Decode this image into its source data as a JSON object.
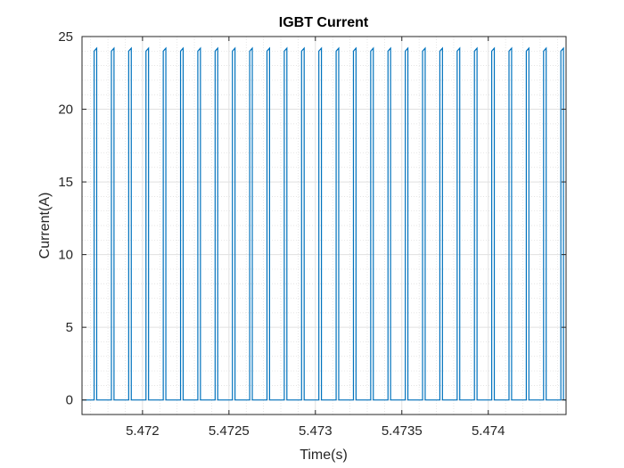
{
  "chart_data": {
    "type": "line",
    "title": "IGBT Current",
    "xlabel": "Time(s)",
    "ylabel": "Current(A)",
    "xlim": [
      5.47165,
      5.47445
    ],
    "ylim": [
      -1,
      25
    ],
    "grid": true,
    "minor_grid": true,
    "x_ticks": [
      5.472,
      5.4725,
      5.473,
      5.4735,
      5.474
    ],
    "x_tick_labels": [
      "5.472",
      "5.4725",
      "5.473",
      "5.4735",
      "5.474"
    ],
    "y_ticks": [
      0,
      5,
      10,
      15,
      20,
      25
    ],
    "y_tick_labels": [
      "0",
      "5",
      "10",
      "15",
      "20",
      "25"
    ],
    "series": [
      {
        "color": "#0072BD",
        "waveform": "pulse-train",
        "pulse_period_s": 0.0001,
        "pulse_width_s": 1.5e-05,
        "first_pulse_start_s": 5.47172,
        "pulse_count": 28,
        "low_value": 0,
        "high_start_value": 24.0,
        "high_end_value": 24.2
      }
    ]
  }
}
